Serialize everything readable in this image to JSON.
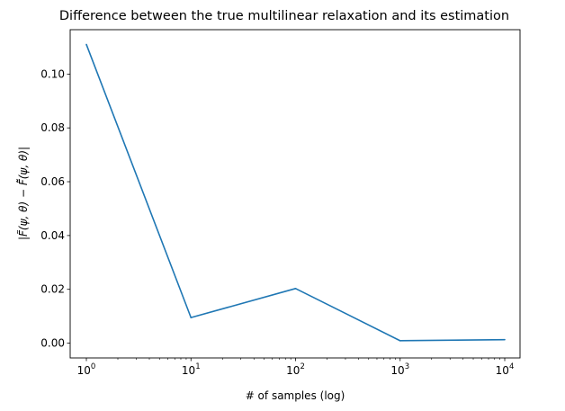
{
  "chart_data": {
    "type": "line",
    "title": "Difference between the true multilinear relaxation and its estimation",
    "xlabel": "# of samples (log)",
    "ylabel": "|F̃(ψ, θ) − F̂̃(ψ, θ)|",
    "x_scale": "log",
    "xlim": [
      0.7,
      14000
    ],
    "ylim": [
      -0.0055,
      0.1165
    ],
    "x_ticks": [
      {
        "value": 1,
        "base": "10",
        "exp": "0"
      },
      {
        "value": 10,
        "base": "10",
        "exp": "1"
      },
      {
        "value": 100,
        "base": "10",
        "exp": "2"
      },
      {
        "value": 1000,
        "base": "10",
        "exp": "3"
      },
      {
        "value": 10000,
        "base": "10",
        "exp": "4"
      }
    ],
    "y_ticks": [
      {
        "value": 0.0,
        "label": "0.00"
      },
      {
        "value": 0.02,
        "label": "0.02"
      },
      {
        "value": 0.04,
        "label": "0.04"
      },
      {
        "value": 0.06,
        "label": "0.06"
      },
      {
        "value": 0.08,
        "label": "0.08"
      },
      {
        "value": 0.1,
        "label": "0.10"
      }
    ],
    "grid": false,
    "series": [
      {
        "color": "#1f77b4",
        "x": [
          1,
          10,
          100,
          1000,
          10000
        ],
        "y": [
          0.111,
          0.0095,
          0.0203,
          0.0009,
          0.0013
        ]
      }
    ]
  }
}
